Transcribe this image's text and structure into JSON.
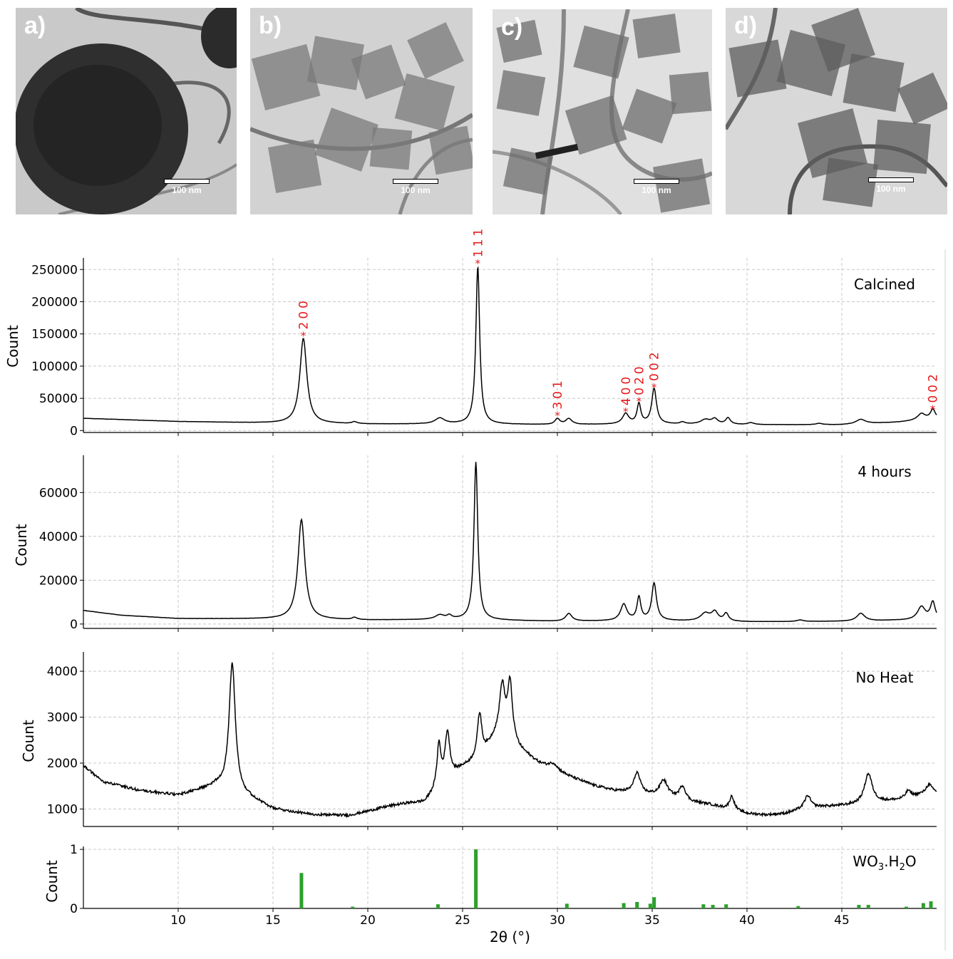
{
  "panels": [
    {
      "label": "a)",
      "scale_label": "100 nm"
    },
    {
      "label": "b)",
      "scale_label": "100 nm"
    },
    {
      "label": "c)",
      "scale_label": "100 nm"
    },
    {
      "label": "d)",
      "scale_label": "100 nm"
    }
  ],
  "colors": {
    "line": "#000000",
    "annotation": "#e8191c",
    "reference_bar": "#2ca02c",
    "grid": "#c8c8c8"
  },
  "chart_data": [
    {
      "type": "line",
      "title": "Calcined",
      "ylabel": "Count",
      "xlim": [
        5,
        50
      ],
      "ylim": [
        -3000,
        268000
      ],
      "yticks": [
        0,
        50000,
        100000,
        150000,
        200000,
        250000
      ],
      "grid": true,
      "baseline": [
        [
          5,
          19000
        ],
        [
          10,
          14000
        ],
        [
          15,
          11500
        ],
        [
          20,
          10000
        ],
        [
          25,
          10000
        ],
        [
          30,
          9000
        ],
        [
          35,
          10000
        ],
        [
          40,
          9000
        ],
        [
          45,
          9000
        ],
        [
          48,
          13000
        ],
        [
          50,
          18000
        ]
      ],
      "peaks": [
        [
          16.6,
          132000,
          0.22
        ],
        [
          19.3,
          3000,
          0.15
        ],
        [
          23.8,
          9000,
          0.3
        ],
        [
          25.8,
          245000,
          0.12
        ],
        [
          30.0,
          9000,
          0.15
        ],
        [
          30.6,
          9000,
          0.2
        ],
        [
          33.6,
          16000,
          0.2
        ],
        [
          34.3,
          31000,
          0.12
        ],
        [
          35.1,
          55000,
          0.15
        ],
        [
          36.6,
          3000,
          0.15
        ],
        [
          37.8,
          7000,
          0.3
        ],
        [
          38.3,
          8000,
          0.2
        ],
        [
          39.0,
          10000,
          0.15
        ],
        [
          40.2,
          3000,
          0.2
        ],
        [
          43.8,
          2000,
          0.2
        ],
        [
          46.0,
          7000,
          0.3
        ],
        [
          49.2,
          10000,
          0.25
        ],
        [
          49.8,
          15000,
          0.15
        ]
      ],
      "annotations": [
        {
          "text": "200",
          "x": 16.6,
          "y": 148000
        },
        {
          "text": "111",
          "x": 25.8,
          "y": 260000
        },
        {
          "text": "301",
          "x": 30.0,
          "y": 24000
        },
        {
          "text": "400",
          "x": 33.6,
          "y": 30000
        },
        {
          "text": "020",
          "x": 34.3,
          "y": 46000
        },
        {
          "text": "002",
          "x": 35.1,
          "y": 68000
        },
        {
          "text": "002",
          "x": 49.8,
          "y": 34000
        }
      ]
    },
    {
      "type": "line",
      "title": "4 hours",
      "ylabel": "Count",
      "xlim": [
        5,
        50
      ],
      "ylim": [
        -2000,
        77000
      ],
      "yticks": [
        0,
        20000,
        40000,
        60000
      ],
      "grid": true,
      "baseline": [
        [
          5,
          6200
        ],
        [
          7,
          4000
        ],
        [
          10,
          2500
        ],
        [
          15,
          2300
        ],
        [
          20,
          1800
        ],
        [
          25,
          2000
        ],
        [
          30,
          1200
        ],
        [
          35,
          1500
        ],
        [
          40,
          1000
        ],
        [
          45,
          1200
        ],
        [
          48,
          1700
        ],
        [
          50,
          1800
        ]
      ],
      "peaks": [
        [
          16.5,
          45500,
          0.22
        ],
        [
          19.3,
          1000,
          0.15
        ],
        [
          23.8,
          2000,
          0.3
        ],
        [
          24.3,
          1500,
          0.15
        ],
        [
          25.7,
          72000,
          0.12
        ],
        [
          30.6,
          3500,
          0.2
        ],
        [
          33.5,
          7500,
          0.2
        ],
        [
          34.3,
          10500,
          0.12
        ],
        [
          35.1,
          17000,
          0.15
        ],
        [
          37.8,
          3500,
          0.3
        ],
        [
          38.3,
          4000,
          0.2
        ],
        [
          38.9,
          3500,
          0.15
        ],
        [
          42.8,
          700,
          0.2
        ],
        [
          46.0,
          3500,
          0.25
        ],
        [
          49.2,
          6000,
          0.25
        ],
        [
          49.8,
          8000,
          0.15
        ]
      ],
      "annotations": []
    },
    {
      "type": "line",
      "title": "No Heat",
      "ylabel": "Count",
      "xlim": [
        5,
        50
      ],
      "ylim": [
        620,
        4420
      ],
      "yticks": [
        1000,
        2000,
        3000,
        4000
      ],
      "grid": true,
      "baseline": [
        [
          5,
          1950
        ],
        [
          6,
          1600
        ],
        [
          8,
          1400
        ],
        [
          10,
          1300
        ],
        [
          12,
          1500
        ],
        [
          14,
          1200
        ],
        [
          15,
          1000
        ],
        [
          17,
          880
        ],
        [
          19,
          860
        ],
        [
          20,
          950
        ],
        [
          21,
          1050
        ],
        [
          22,
          1120
        ],
        [
          23,
          1150
        ],
        [
          24,
          1600
        ],
        [
          25,
          1900
        ],
        [
          26,
          2100
        ],
        [
          27,
          2800
        ],
        [
          28,
          2300
        ],
        [
          29,
          2000
        ],
        [
          30,
          1800
        ],
        [
          31,
          1650
        ],
        [
          32,
          1500
        ],
        [
          33,
          1400
        ],
        [
          34,
          1350
        ],
        [
          35,
          1300
        ],
        [
          36,
          1250
        ],
        [
          37,
          1150
        ],
        [
          38,
          1100
        ],
        [
          39,
          1000
        ],
        [
          40,
          900
        ],
        [
          41,
          870
        ],
        [
          42,
          900
        ],
        [
          43,
          1000
        ],
        [
          44,
          1050
        ],
        [
          45,
          1070
        ],
        [
          46,
          1100
        ],
        [
          47,
          1150
        ],
        [
          48,
          1200
        ],
        [
          49,
          1300
        ],
        [
          50,
          1350
        ]
      ],
      "peaks": [
        [
          12.85,
          2800,
          0.2
        ],
        [
          23.75,
          900,
          0.12
        ],
        [
          24.2,
          1000,
          0.15
        ],
        [
          25.9,
          1000,
          0.15
        ],
        [
          27.1,
          900,
          0.15
        ],
        [
          27.5,
          1200,
          0.15
        ],
        [
          29.8,
          150,
          0.3
        ],
        [
          34.2,
          450,
          0.2
        ],
        [
          35.6,
          350,
          0.25
        ],
        [
          36.6,
          300,
          0.2
        ],
        [
          39.2,
          300,
          0.15
        ],
        [
          43.2,
          280,
          0.2
        ],
        [
          46.4,
          650,
          0.25
        ],
        [
          48.5,
          150,
          0.15
        ],
        [
          49.6,
          200,
          0.2
        ]
      ],
      "annotations": []
    },
    {
      "type": "bar",
      "title": "WO3.H2O",
      "ylabel": "Count",
      "xlabel": "2θ (°)",
      "xlim": [
        5,
        50
      ],
      "ylim": [
        0,
        1.05
      ],
      "yticks": [
        0,
        1
      ],
      "xticks": [
        10,
        15,
        20,
        25,
        30,
        35,
        40,
        45
      ],
      "grid": true,
      "bars": [
        [
          16.5,
          0.6
        ],
        [
          19.2,
          0.03
        ],
        [
          23.7,
          0.07
        ],
        [
          25.7,
          1.0
        ],
        [
          30.5,
          0.08
        ],
        [
          33.5,
          0.09
        ],
        [
          34.2,
          0.11
        ],
        [
          34.9,
          0.08
        ],
        [
          35.1,
          0.19
        ],
        [
          37.7,
          0.07
        ],
        [
          38.2,
          0.06
        ],
        [
          38.9,
          0.07
        ],
        [
          42.7,
          0.04
        ],
        [
          45.9,
          0.06
        ],
        [
          46.4,
          0.06
        ],
        [
          48.4,
          0.03
        ],
        [
          49.3,
          0.09
        ],
        [
          49.7,
          0.12
        ]
      ]
    }
  ]
}
